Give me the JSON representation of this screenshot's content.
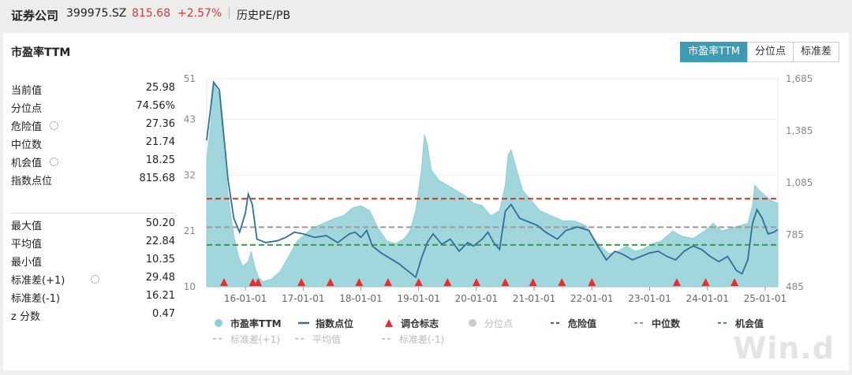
{
  "header": {
    "name": "证券公司",
    "code": "399975.SZ",
    "price": "815.68",
    "change": "+2.57%",
    "link": "历史PE/PB"
  },
  "panel": {
    "title": "市盈率TTM",
    "tabs": [
      "市盈率TTM",
      "分位点",
      "标准差"
    ],
    "active_tab": 0
  },
  "stats_top": [
    {
      "label": "当前值",
      "value": "25.98",
      "gear": false
    },
    {
      "label": "分位点",
      "value": "74.56%",
      "gear": false
    },
    {
      "label": "危险值",
      "value": "27.36",
      "gear": true
    },
    {
      "label": "中位数",
      "value": "21.74",
      "gear": false
    },
    {
      "label": "机会值",
      "value": "18.25",
      "gear": true
    },
    {
      "label": "指数点位",
      "value": "815.68",
      "gear": false
    }
  ],
  "stats_bottom": [
    {
      "label": "最大值",
      "value": "50.20",
      "gear": false
    },
    {
      "label": "平均值",
      "value": "22.84",
      "gear": false
    },
    {
      "label": "最小值",
      "value": "10.35",
      "gear": false
    },
    {
      "label": "标准差(+1)",
      "value": "29.48",
      "gear": true
    },
    {
      "label": "标准差(-1)",
      "value": "16.21",
      "gear": false
    },
    {
      "label": "z 分数",
      "value": "0.47",
      "gear": false
    }
  ],
  "watermark": "Win.d",
  "colors": {
    "pe_area": "#8fcfd6",
    "index_line": "#2f6f9c",
    "marker": "#e03030",
    "danger": "#c0392b",
    "median": "#999999",
    "opportunity": "#3a9a4a",
    "price_red": "#d63a3a",
    "tab_active": "#3d9bb4"
  },
  "chart_data": {
    "type": "area",
    "x_ticks": [
      "16-01-01",
      "17-01-01",
      "18-01-01",
      "19-01-01",
      "20-01-01",
      "21-01-01",
      "22-01-01",
      "23-01-01",
      "24-01-01",
      "25-01-01"
    ],
    "x_range": [
      2015.33,
      2025.22
    ],
    "y_left_ticks": [
      "10",
      "21",
      "32",
      "43",
      "51"
    ],
    "y_left_range": [
      10,
      51
    ],
    "y_right_ticks": [
      "485",
      "785",
      "1,085",
      "1,385",
      "1,685"
    ],
    "y_right_range": [
      485,
      1685
    ],
    "reference_lines": {
      "danger": 27.36,
      "median": 21.74,
      "opportunity": 18.25
    },
    "pe": {
      "name": "市盈率TTM",
      "points": [
        [
          2015.33,
          35
        ],
        [
          2015.4,
          42
        ],
        [
          2015.45,
          50
        ],
        [
          2015.55,
          48
        ],
        [
          2015.62,
          38
        ],
        [
          2015.7,
          28
        ],
        [
          2015.8,
          20
        ],
        [
          2015.88,
          16
        ],
        [
          2015.95,
          14
        ],
        [
          2016.05,
          15
        ],
        [
          2016.1,
          17
        ],
        [
          2016.16,
          14
        ],
        [
          2016.22,
          12
        ],
        [
          2016.3,
          11
        ],
        [
          2016.45,
          11.5
        ],
        [
          2016.6,
          13
        ],
        [
          2016.75,
          16
        ],
        [
          2016.9,
          19
        ],
        [
          2017.0,
          20
        ],
        [
          2017.15,
          21.5
        ],
        [
          2017.35,
          22.5
        ],
        [
          2017.55,
          23.5
        ],
        [
          2017.7,
          24
        ],
        [
          2017.85,
          25.5
        ],
        [
          2018.0,
          26
        ],
        [
          2018.15,
          25
        ],
        [
          2018.3,
          21.5
        ],
        [
          2018.45,
          19
        ],
        [
          2018.6,
          18.5
        ],
        [
          2018.75,
          19.5
        ],
        [
          2018.85,
          21
        ],
        [
          2018.95,
          25
        ],
        [
          2019.05,
          33
        ],
        [
          2019.1,
          40
        ],
        [
          2019.15,
          38
        ],
        [
          2019.22,
          33
        ],
        [
          2019.35,
          31
        ],
        [
          2019.5,
          30
        ],
        [
          2019.65,
          29
        ],
        [
          2019.8,
          28
        ],
        [
          2019.95,
          26.5
        ],
        [
          2020.1,
          26
        ],
        [
          2020.25,
          24
        ],
        [
          2020.4,
          25
        ],
        [
          2020.5,
          30
        ],
        [
          2020.55,
          36
        ],
        [
          2020.6,
          37
        ],
        [
          2020.7,
          33
        ],
        [
          2020.8,
          29
        ],
        [
          2020.95,
          27
        ],
        [
          2021.1,
          25
        ],
        [
          2021.3,
          24
        ],
        [
          2021.5,
          23
        ],
        [
          2021.7,
          23
        ],
        [
          2021.9,
          22
        ],
        [
          2022.0,
          20
        ],
        [
          2022.15,
          18
        ],
        [
          2022.3,
          16.5
        ],
        [
          2022.45,
          17
        ],
        [
          2022.6,
          18
        ],
        [
          2022.75,
          17
        ],
        [
          2022.9,
          17.5
        ],
        [
          2023.05,
          18.5
        ],
        [
          2023.2,
          19
        ],
        [
          2023.4,
          21
        ],
        [
          2023.55,
          20
        ],
        [
          2023.75,
          19.5
        ],
        [
          2023.95,
          21
        ],
        [
          2024.1,
          22.5
        ],
        [
          2024.25,
          21
        ],
        [
          2024.4,
          21.5
        ],
        [
          2024.55,
          22
        ],
        [
          2024.7,
          22.5
        ],
        [
          2024.78,
          26
        ],
        [
          2024.82,
          30
        ],
        [
          2024.9,
          29
        ],
        [
          2025.0,
          28
        ],
        [
          2025.1,
          27
        ],
        [
          2025.22,
          26.5
        ]
      ]
    },
    "index": {
      "name": "指数点位",
      "points": [
        [
          2015.33,
          1330
        ],
        [
          2015.4,
          1520
        ],
        [
          2015.45,
          1665
        ],
        [
          2015.55,
          1620
        ],
        [
          2015.62,
          1380
        ],
        [
          2015.7,
          1100
        ],
        [
          2015.8,
          880
        ],
        [
          2015.9,
          800
        ],
        [
          2016.0,
          910
        ],
        [
          2016.05,
          1020
        ],
        [
          2016.12,
          960
        ],
        [
          2016.2,
          760
        ],
        [
          2016.35,
          740
        ],
        [
          2016.55,
          750
        ],
        [
          2016.7,
          770
        ],
        [
          2016.85,
          800
        ],
        [
          2017.0,
          790
        ],
        [
          2017.2,
          770
        ],
        [
          2017.4,
          780
        ],
        [
          2017.6,
          740
        ],
        [
          2017.8,
          790
        ],
        [
          2017.9,
          800
        ],
        [
          2018.0,
          770
        ],
        [
          2018.1,
          810
        ],
        [
          2018.2,
          720
        ],
        [
          2018.35,
          680
        ],
        [
          2018.5,
          650
        ],
        [
          2018.65,
          620
        ],
        [
          2018.8,
          580
        ],
        [
          2018.95,
          540
        ],
        [
          2019.05,
          650
        ],
        [
          2019.15,
          740
        ],
        [
          2019.25,
          790
        ],
        [
          2019.4,
          730
        ],
        [
          2019.55,
          760
        ],
        [
          2019.7,
          690
        ],
        [
          2019.85,
          740
        ],
        [
          2019.95,
          720
        ],
        [
          2020.1,
          760
        ],
        [
          2020.2,
          800
        ],
        [
          2020.3,
          740
        ],
        [
          2020.4,
          700
        ],
        [
          2020.5,
          920
        ],
        [
          2020.6,
          960
        ],
        [
          2020.75,
          880
        ],
        [
          2020.9,
          860
        ],
        [
          2021.05,
          840
        ],
        [
          2021.2,
          800
        ],
        [
          2021.4,
          760
        ],
        [
          2021.55,
          810
        ],
        [
          2021.75,
          830
        ],
        [
          2021.95,
          810
        ],
        [
          2022.1,
          720
        ],
        [
          2022.25,
          640
        ],
        [
          2022.4,
          690
        ],
        [
          2022.55,
          670
        ],
        [
          2022.7,
          640
        ],
        [
          2022.85,
          660
        ],
        [
          2023.0,
          680
        ],
        [
          2023.15,
          690
        ],
        [
          2023.3,
          660
        ],
        [
          2023.45,
          640
        ],
        [
          2023.6,
          690
        ],
        [
          2023.75,
          720
        ],
        [
          2023.9,
          700
        ],
        [
          2024.05,
          660
        ],
        [
          2024.2,
          630
        ],
        [
          2024.35,
          660
        ],
        [
          2024.5,
          580
        ],
        [
          2024.6,
          560
        ],
        [
          2024.7,
          640
        ],
        [
          2024.78,
          850
        ],
        [
          2024.86,
          930
        ],
        [
          2024.95,
          880
        ],
        [
          2025.05,
          790
        ],
        [
          2025.15,
          800
        ],
        [
          2025.22,
          815.68
        ]
      ]
    },
    "rebalance_markers": [
      2015.63,
      2016.13,
      2016.22,
      2016.97,
      2017.47,
      2017.97,
      2018.47,
      2019.0,
      2019.5,
      2020.0,
      2020.5,
      2020.98,
      2021.48,
      2022.0,
      2023.47,
      2023.97,
      2024.47
    ],
    "legend": [
      "市盈率TTM",
      "指数点位",
      "调仓标志",
      "分位点",
      "危险值",
      "中位数",
      "机会值",
      "标准差(+1)",
      "平均值",
      "标准差(-1)"
    ]
  }
}
